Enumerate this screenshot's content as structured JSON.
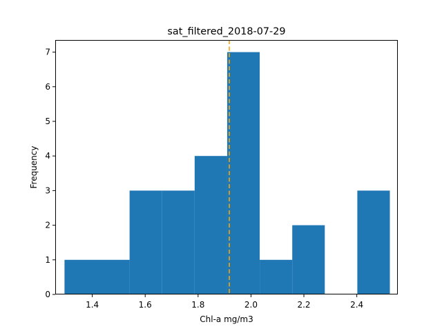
{
  "chart_data": {
    "type": "bar",
    "subtype": "histogram",
    "title": "sat_filtered_2018-07-29",
    "xlabel": "Chl-a mg/m3",
    "ylabel": "Frequency",
    "xlim": [
      1.26,
      2.555
    ],
    "ylim": [
      0,
      7.35
    ],
    "xticks": [
      1.4,
      1.6,
      1.8,
      2.0,
      2.2,
      2.4
    ],
    "xtick_labels": [
      "1.4",
      "1.6",
      "1.8",
      "2.0",
      "2.2",
      "2.4"
    ],
    "yticks": [
      0,
      1,
      2,
      3,
      4,
      5,
      6,
      7
    ],
    "ytick_labels": [
      "0",
      "1",
      "2",
      "3",
      "4",
      "5",
      "6",
      "7"
    ],
    "bin_edges": [
      1.295,
      1.418,
      1.541,
      1.664,
      1.787,
      1.91,
      2.033,
      2.156,
      2.279,
      2.402,
      2.525
    ],
    "counts": [
      1,
      1,
      3,
      3,
      4,
      7,
      1,
      2,
      0,
      3
    ],
    "bar_color": "#1f77b4",
    "reference_line": {
      "x": 1.918,
      "style": "dashed",
      "color": "#ffa500"
    },
    "grid": false,
    "legend": "none"
  }
}
